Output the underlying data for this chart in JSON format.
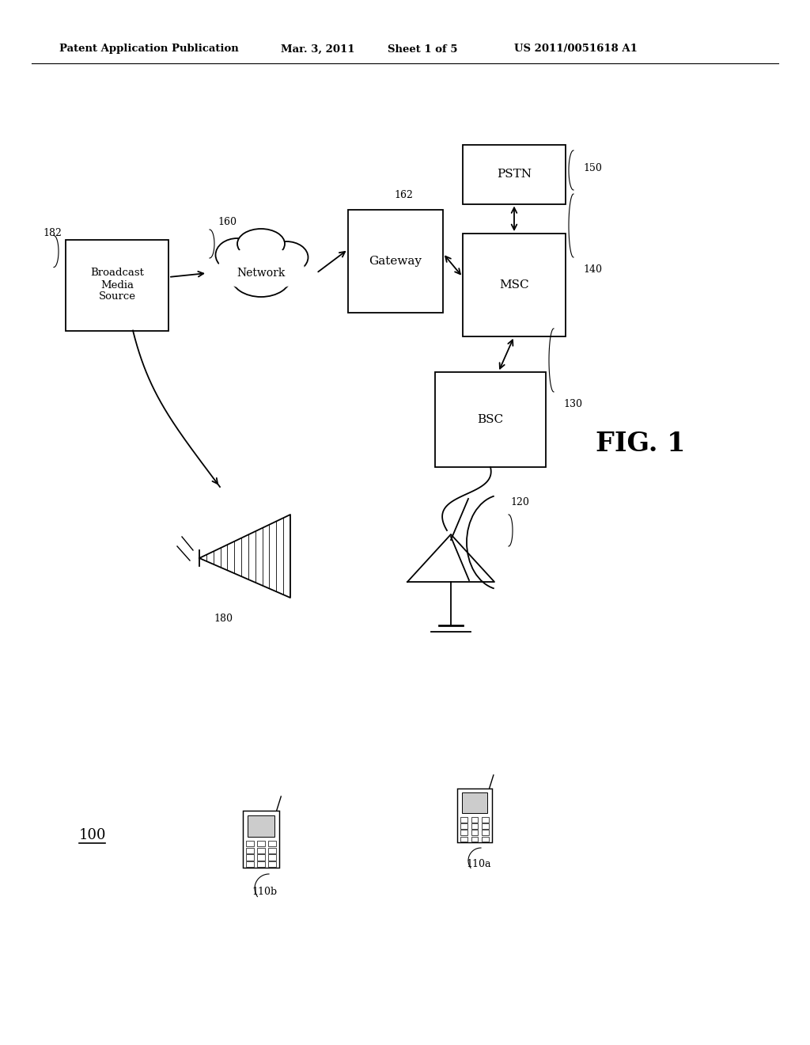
{
  "title": "Patent Application Publication",
  "date": "Mar. 3, 2011",
  "sheet": "Sheet 1 of 5",
  "patent_num": "US 2011/0051618 A1",
  "fig_label": "FIG. 1",
  "bg_color": "#ffffff",
  "line_color": "#000000"
}
